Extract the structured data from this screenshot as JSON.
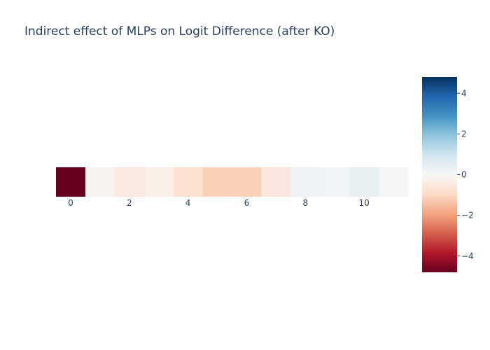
{
  "chart_data": {
    "type": "heatmap",
    "title": "Indirect effect of MLPs on Logit Difference (after KO)",
    "x": [
      0,
      1,
      2,
      3,
      4,
      5,
      6,
      7,
      8,
      9,
      10,
      11
    ],
    "values": [
      -5.0,
      -0.15,
      -0.45,
      -0.35,
      -0.75,
      -1.15,
      -1.15,
      -0.55,
      0.2,
      0.15,
      0.35,
      0.1
    ],
    "xtick_values": [
      0,
      2,
      4,
      6,
      8,
      10
    ],
    "xtick_labels": [
      "0",
      "2",
      "4",
      "6",
      "8",
      "10"
    ],
    "colorbar": {
      "colorscale": "RdBu",
      "zmin": -4.8,
      "zmax": 4.8,
      "tick_values": [
        4,
        2,
        0,
        -2,
        -4
      ],
      "tick_labels": [
        "4",
        "2",
        "0",
        "−2",
        "−4"
      ]
    }
  }
}
